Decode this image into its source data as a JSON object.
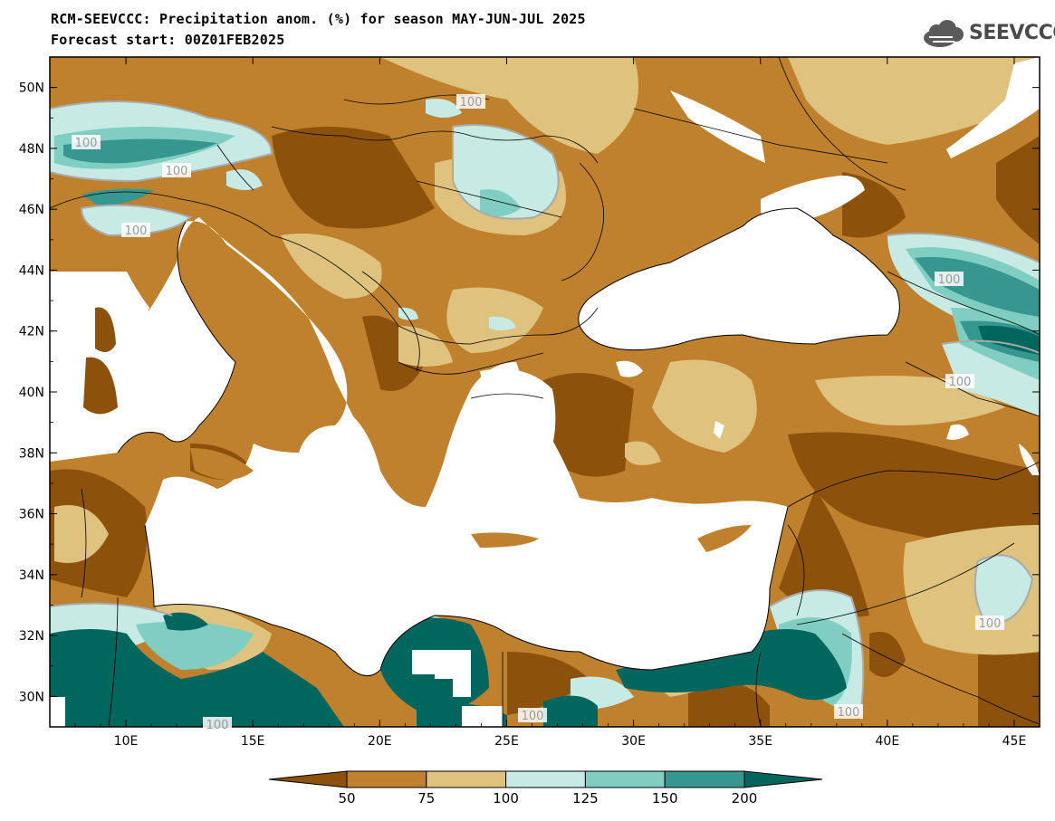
{
  "title": {
    "line1": "RCM-SEEVCCC: Precipitation anom. (%) for season MAY-JUN-JUL 2025",
    "line2": "Forecast start: 00Z01FEB2025"
  },
  "logo": {
    "text": "SEEVCCC",
    "icon": "cloud-icon"
  },
  "map": {
    "lon_range": [
      7,
      46
    ],
    "lat_range": [
      29,
      51
    ],
    "lat_ticks": [
      "50N",
      "48N",
      "46N",
      "44N",
      "42N",
      "40N",
      "38N",
      "36N",
      "34N",
      "32N",
      "30N"
    ],
    "lon_ticks": [
      "10E",
      "15E",
      "20E",
      "25E",
      "30E",
      "35E",
      "40E",
      "45E"
    ],
    "contour_labels": [
      "100",
      "100",
      "100",
      "100",
      "100",
      "100",
      "100",
      "100",
      "100",
      "100",
      "100"
    ]
  },
  "colorbar": {
    "labels": [
      "50",
      "75",
      "100",
      "125",
      "150",
      "200"
    ],
    "colors": [
      "#8c510a",
      "#bf812d",
      "#dfc27d",
      "#c7eae5",
      "#80cdc1",
      "#35978f",
      "#01665e"
    ]
  },
  "palette": {
    "very_dry": "#8c510a",
    "dry": "#bf812d",
    "slightly_dry": "#dfc27d",
    "slightly_wet": "#c7eae5",
    "wet": "#80cdc1",
    "very_wet": "#35978f",
    "extreme_wet": "#01665e",
    "sea": "#ffffff"
  }
}
